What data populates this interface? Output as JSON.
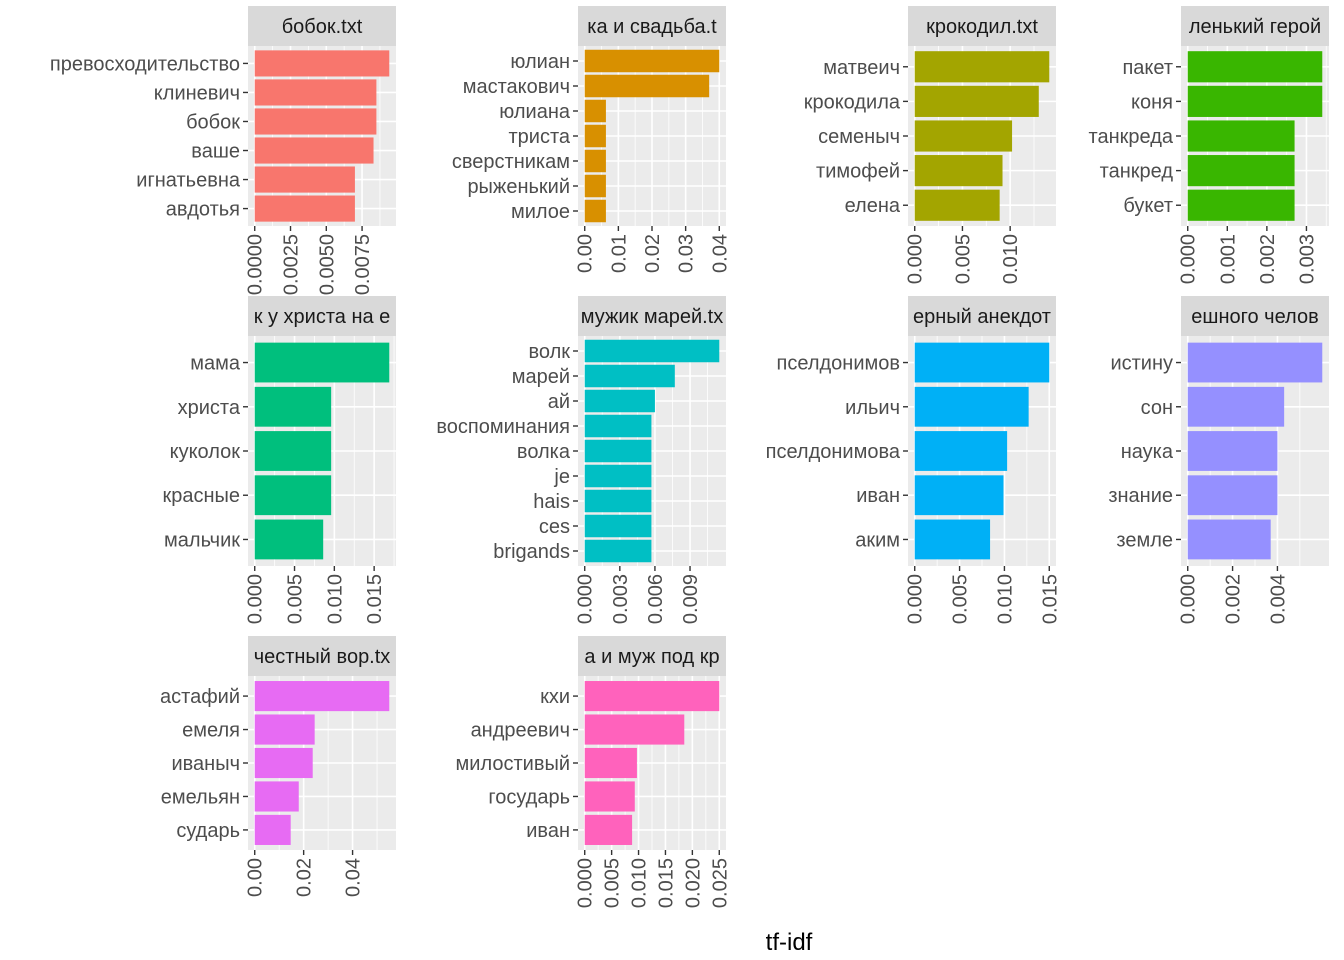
{
  "chart_data": {
    "type": "bar",
    "orientation": "horizontal",
    "xlabel": "tf-idf",
    "grid": true,
    "legend": "none",
    "panels": [
      {
        "title": "бобок.txt",
        "color": "#F8766D",
        "categories": [
          "превосходительство",
          "клиневич",
          "бобок",
          "ваше",
          "игнатьевна",
          "авдотья"
        ],
        "values": [
          0.0094,
          0.0085,
          0.0085,
          0.0083,
          0.007,
          0.007
        ],
        "ticks": [
          0,
          0.0025,
          0.005,
          0.0075
        ],
        "tick_labels": [
          "0.0000",
          "0.0025",
          "0.0050",
          "0.0075"
        ]
      },
      {
        "title": "ка и свадьба.t",
        "color": "#D89000",
        "categories": [
          "юлиан",
          "мастакович",
          "юлиана",
          "триста",
          "сверстникам",
          "рыженький",
          "милое"
        ],
        "values": [
          0.04,
          0.037,
          0.0063,
          0.0063,
          0.0063,
          0.0063,
          0.0063
        ],
        "ticks": [
          0,
          0.01,
          0.02,
          0.03,
          0.04
        ],
        "tick_labels": [
          "0.00",
          "0.01",
          "0.02",
          "0.03",
          "0.04"
        ]
      },
      {
        "title": "крокодил.txt",
        "color": "#A3A500",
        "categories": [
          "матвеич",
          "крокодила",
          "семеныч",
          "тимофей",
          "елена"
        ],
        "values": [
          0.0141,
          0.013,
          0.0102,
          0.0092,
          0.0089
        ],
        "ticks": [
          0,
          0.005,
          0.01
        ],
        "tick_labels": [
          "0.000",
          "0.005",
          "0.010"
        ]
      },
      {
        "title": "ленький герой",
        "color": "#39B600",
        "categories": [
          "пакет",
          "коня",
          "танкреда",
          "танкред",
          "букет"
        ],
        "values": [
          0.0034,
          0.0034,
          0.0027,
          0.0027,
          0.0027
        ],
        "ticks": [
          0,
          0.001,
          0.002,
          0.003
        ],
        "tick_labels": [
          "0.000",
          "0.001",
          "0.002",
          "0.003"
        ]
      },
      {
        "title": "к у христа на е",
        "color": "#00BF7D",
        "categories": [
          "мама",
          "христа",
          "куколок",
          "красные",
          "мальчик"
        ],
        "values": [
          0.0169,
          0.0096,
          0.0096,
          0.0096,
          0.0086
        ],
        "ticks": [
          0,
          0.005,
          0.01,
          0.015
        ],
        "tick_labels": [
          "0.000",
          "0.005",
          "0.010",
          "0.015"
        ]
      },
      {
        "title": "мужик марей.tx",
        "color": "#00BFC4",
        "categories": [
          "волк",
          "марей",
          "ай",
          "воспоминания",
          "волка",
          "je",
          "hais",
          "ces",
          "brigands"
        ],
        "values": [
          0.0115,
          0.0077,
          0.006,
          0.0057,
          0.0057,
          0.0057,
          0.0057,
          0.0057,
          0.0057
        ],
        "ticks": [
          0,
          0.003,
          0.006,
          0.009
        ],
        "tick_labels": [
          "0.000",
          "0.003",
          "0.006",
          "0.009"
        ]
      },
      {
        "title": "ерный анекдот",
        "color": "#00B0F6",
        "categories": [
          "пселдонимов",
          "ильич",
          "пселдонимова",
          "иван",
          "аким"
        ],
        "values": [
          0.015,
          0.0127,
          0.0103,
          0.0099,
          0.0084
        ],
        "ticks": [
          0,
          0.005,
          0.01,
          0.015
        ],
        "tick_labels": [
          "0.000",
          "0.005",
          "0.010",
          "0.015"
        ]
      },
      {
        "title": "ешного челов",
        "color": "#9590FF",
        "categories": [
          "истину",
          "сон",
          "наука",
          "знание",
          "земле"
        ],
        "values": [
          0.006,
          0.0043,
          0.004,
          0.004,
          0.0037
        ],
        "ticks": [
          0,
          0.002,
          0.004
        ],
        "tick_labels": [
          "0.000",
          "0.002",
          "0.004"
        ]
      },
      {
        "title": "честный вор.tx",
        "color": "#E76BF3",
        "categories": [
          "астафий",
          "емеля",
          "иваныч",
          "емельян",
          "сударь"
        ],
        "values": [
          0.055,
          0.0245,
          0.0237,
          0.018,
          0.0147
        ],
        "ticks": [
          0,
          0.02,
          0.04
        ],
        "tick_labels": [
          "0.00",
          "0.02",
          "0.04"
        ]
      },
      {
        "title": "а и муж под кр",
        "color": "#FF62BC",
        "categories": [
          "кхи",
          "андреевич",
          "милостивый",
          "государь",
          "иван"
        ],
        "values": [
          0.025,
          0.0185,
          0.0097,
          0.0093,
          0.0088
        ],
        "ticks": [
          0,
          0.005,
          0.01,
          0.015,
          0.02,
          0.025
        ],
        "tick_labels": [
          "0.000",
          "0.005",
          "0.010",
          "0.015",
          "0.020",
          "0.025"
        ]
      }
    ]
  }
}
